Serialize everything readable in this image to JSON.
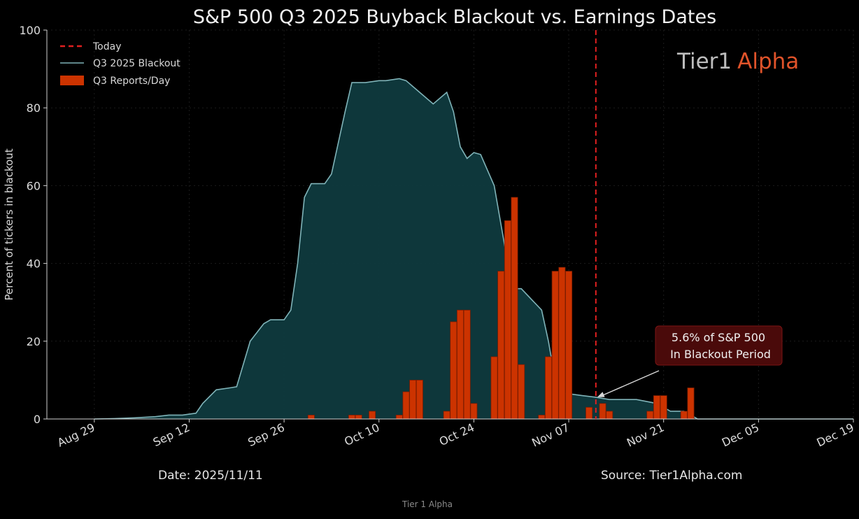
{
  "colors": {
    "background": "#000000",
    "blackout_line": "#7fb3b8",
    "blackout_fill": "#0f3a3e",
    "bars": "#cc3300",
    "bar_edge": "#7a1c00",
    "today_line": "#e02020",
    "brand_alpha": "#e0532a"
  },
  "legend": {
    "today": "Today",
    "blackout": "Q3 2025 Blackout",
    "reports": "Q3 Reports/Day"
  },
  "brand": {
    "part1": "Tier1",
    "part2": "Alpha"
  },
  "annotation": {
    "line1": "5.6% of S&P 500",
    "line2": "In Blackout Period"
  },
  "footer": {
    "date": "Date: 2025/11/11",
    "source": "Source: Tier1Alpha.com",
    "watermark": "Tier 1 Alpha"
  },
  "chart_data": {
    "type": "area",
    "title": "S&P 500 Q3 2025 Buyback Blackout vs. Earnings Dates",
    "ylabel": "Percent of tickers in blackout",
    "xlabel": "",
    "ylim": [
      0,
      100
    ],
    "yticks": [
      0,
      20,
      40,
      60,
      80,
      100
    ],
    "xlim": [
      "2025-08-22",
      "2025-12-19"
    ],
    "xticks": [
      "Aug 29",
      "Sep 12",
      "Sep 26",
      "Oct 10",
      "Oct 24",
      "Nov 07",
      "Nov 21",
      "Dec 05",
      "Dec 19"
    ],
    "xtick_dates": [
      "2025-08-29",
      "2025-09-12",
      "2025-09-26",
      "2025-10-10",
      "2025-10-24",
      "2025-11-07",
      "2025-11-21",
      "2025-12-05",
      "2025-12-19"
    ],
    "grid": true,
    "legend_position": "top-left",
    "today": "2025-11-11",
    "annotation_point": {
      "date": "2025-11-11",
      "value": 5.6
    },
    "series": [
      {
        "name": "Q3 2025 Blackout",
        "kind": "area",
        "x": [
          "2025-08-29",
          "2025-09-01",
          "2025-09-04",
          "2025-09-07",
          "2025-09-09",
          "2025-09-11",
          "2025-09-13",
          "2025-09-14",
          "2025-09-16",
          "2025-09-18",
          "2025-09-19",
          "2025-09-21",
          "2025-09-23",
          "2025-09-24",
          "2025-09-26",
          "2025-09-27",
          "2025-09-28",
          "2025-09-29",
          "2025-09-30",
          "2025-10-02",
          "2025-10-03",
          "2025-10-05",
          "2025-10-06",
          "2025-10-08",
          "2025-10-10",
          "2025-10-11",
          "2025-10-13",
          "2025-10-14",
          "2025-10-16",
          "2025-10-18",
          "2025-10-20",
          "2025-10-21",
          "2025-10-22",
          "2025-10-23",
          "2025-10-24",
          "2025-10-25",
          "2025-10-27",
          "2025-10-28",
          "2025-10-29",
          "2025-10-30",
          "2025-10-31",
          "2025-11-03",
          "2025-11-04",
          "2025-11-05",
          "2025-11-06",
          "2025-11-07",
          "2025-11-09",
          "2025-11-11",
          "2025-11-13",
          "2025-11-17",
          "2025-11-20",
          "2025-11-22",
          "2025-11-24",
          "2025-11-26",
          "2025-11-28",
          "2025-12-19"
        ],
        "values": [
          0,
          0.1,
          0.3,
          0.6,
          1,
          1,
          1.5,
          4,
          7.5,
          8,
          8.3,
          20,
          24.5,
          25.5,
          25.5,
          28,
          40,
          57,
          60.5,
          60.5,
          63,
          79,
          86.5,
          86.5,
          87,
          87,
          87.5,
          87,
          84,
          81,
          84,
          79,
          70,
          67,
          68.5,
          68,
          60,
          50,
          40,
          33.5,
          33.5,
          28,
          20,
          10,
          6.5,
          6.5,
          6,
          5.6,
          5,
          5,
          4,
          2,
          2,
          0,
          0,
          0
        ]
      },
      {
        "name": "Q3 Reports/Day",
        "kind": "bar",
        "x": [
          "2025-09-30",
          "2025-10-06",
          "2025-10-07",
          "2025-10-09",
          "2025-10-13",
          "2025-10-14",
          "2025-10-15",
          "2025-10-16",
          "2025-10-20",
          "2025-10-21",
          "2025-10-22",
          "2025-10-23",
          "2025-10-24",
          "2025-10-27",
          "2025-10-28",
          "2025-10-29",
          "2025-10-30",
          "2025-10-31",
          "2025-11-03",
          "2025-11-04",
          "2025-11-05",
          "2025-11-06",
          "2025-11-07",
          "2025-11-10",
          "2025-11-12",
          "2025-11-13",
          "2025-11-19",
          "2025-11-20",
          "2025-11-21",
          "2025-11-24",
          "2025-11-25"
        ],
        "values": [
          1,
          1,
          1,
          2,
          1,
          7,
          10,
          10,
          2,
          25,
          28,
          28,
          4,
          16,
          38,
          51,
          57,
          14,
          1,
          16,
          38,
          39,
          38,
          3,
          4,
          2,
          2,
          6,
          6,
          2,
          8
        ]
      }
    ]
  }
}
